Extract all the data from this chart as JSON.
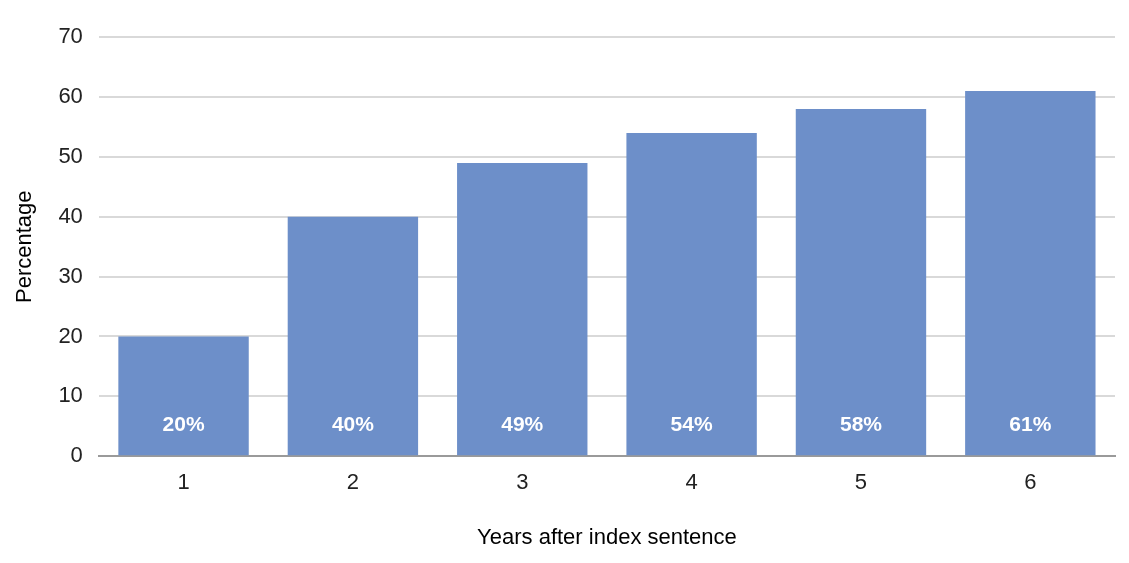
{
  "chart_data": {
    "type": "bar",
    "xlabel": "Years after index sentence",
    "ylabel": "Percentage",
    "categories": [
      "1",
      "2",
      "3",
      "4",
      "5",
      "6"
    ],
    "values": [
      20,
      40,
      49,
      54,
      58,
      61
    ],
    "value_labels": [
      "20%",
      "40%",
      "49%",
      "54%",
      "58%",
      "61%"
    ],
    "color": "#6d8fc9",
    "ylim": [
      0,
      70
    ],
    "yticks": [
      0,
      10,
      20,
      30,
      40,
      50,
      60,
      70
    ],
    "grid": "y",
    "legend": false
  }
}
